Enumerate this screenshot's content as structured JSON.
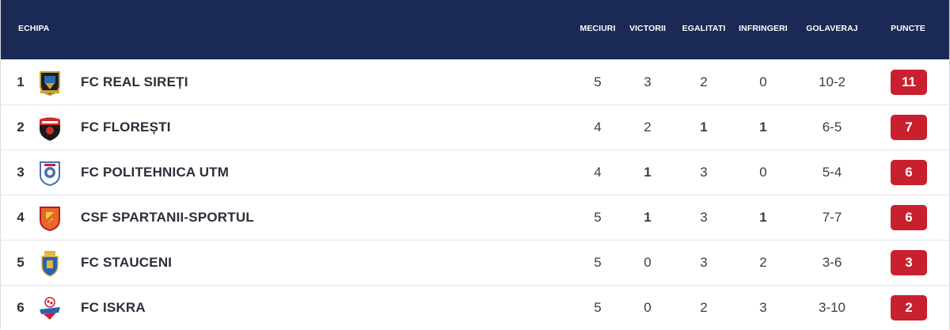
{
  "header": {
    "team": "ECHIPA",
    "matches": "MECIURI",
    "wins": "VICTORII",
    "draws": "EGALITATI",
    "losses": "INFRINGERI",
    "goals": "GOLAVERAJ",
    "points": "PUNCTE"
  },
  "colors": {
    "header_bg": "#1b2a55",
    "points_badge": "#c8202e"
  },
  "rows": [
    {
      "pos": "1",
      "team": "FC REAL SIREȚI",
      "logo": "crest-black-gold-icon",
      "matches": "5",
      "wins": "3",
      "draws": "2",
      "losses": "0",
      "goals": "10-2",
      "points": "11"
    },
    {
      "pos": "2",
      "team": "FC FLOREȘTI",
      "logo": "crest-red-black-icon",
      "matches": "4",
      "wins": "2",
      "draws": "1",
      "losses": "1",
      "goals": "6-5",
      "points": "7"
    },
    {
      "pos": "3",
      "team": "FC POLITEHNICA UTM",
      "logo": "crest-blue-white-icon",
      "matches": "4",
      "wins": "1",
      "draws": "3",
      "losses": "0",
      "goals": "5-4",
      "points": "6"
    },
    {
      "pos": "4",
      "team": "CSF SPARTANII-SPORTUL",
      "logo": "crest-orange-red-icon",
      "matches": "5",
      "wins": "1",
      "draws": "3",
      "losses": "1",
      "goals": "7-7",
      "points": "6"
    },
    {
      "pos": "5",
      "team": "FC STAUCENI",
      "logo": "crest-blue-yellow-icon",
      "matches": "5",
      "wins": "0",
      "draws": "3",
      "losses": "2",
      "goals": "3-6",
      "points": "3"
    },
    {
      "pos": "6",
      "team": "FC ISKRA",
      "logo": "crest-iskra-icon",
      "matches": "5",
      "wins": "0",
      "draws": "2",
      "losses": "3",
      "goals": "3-10",
      "points": "2"
    }
  ]
}
